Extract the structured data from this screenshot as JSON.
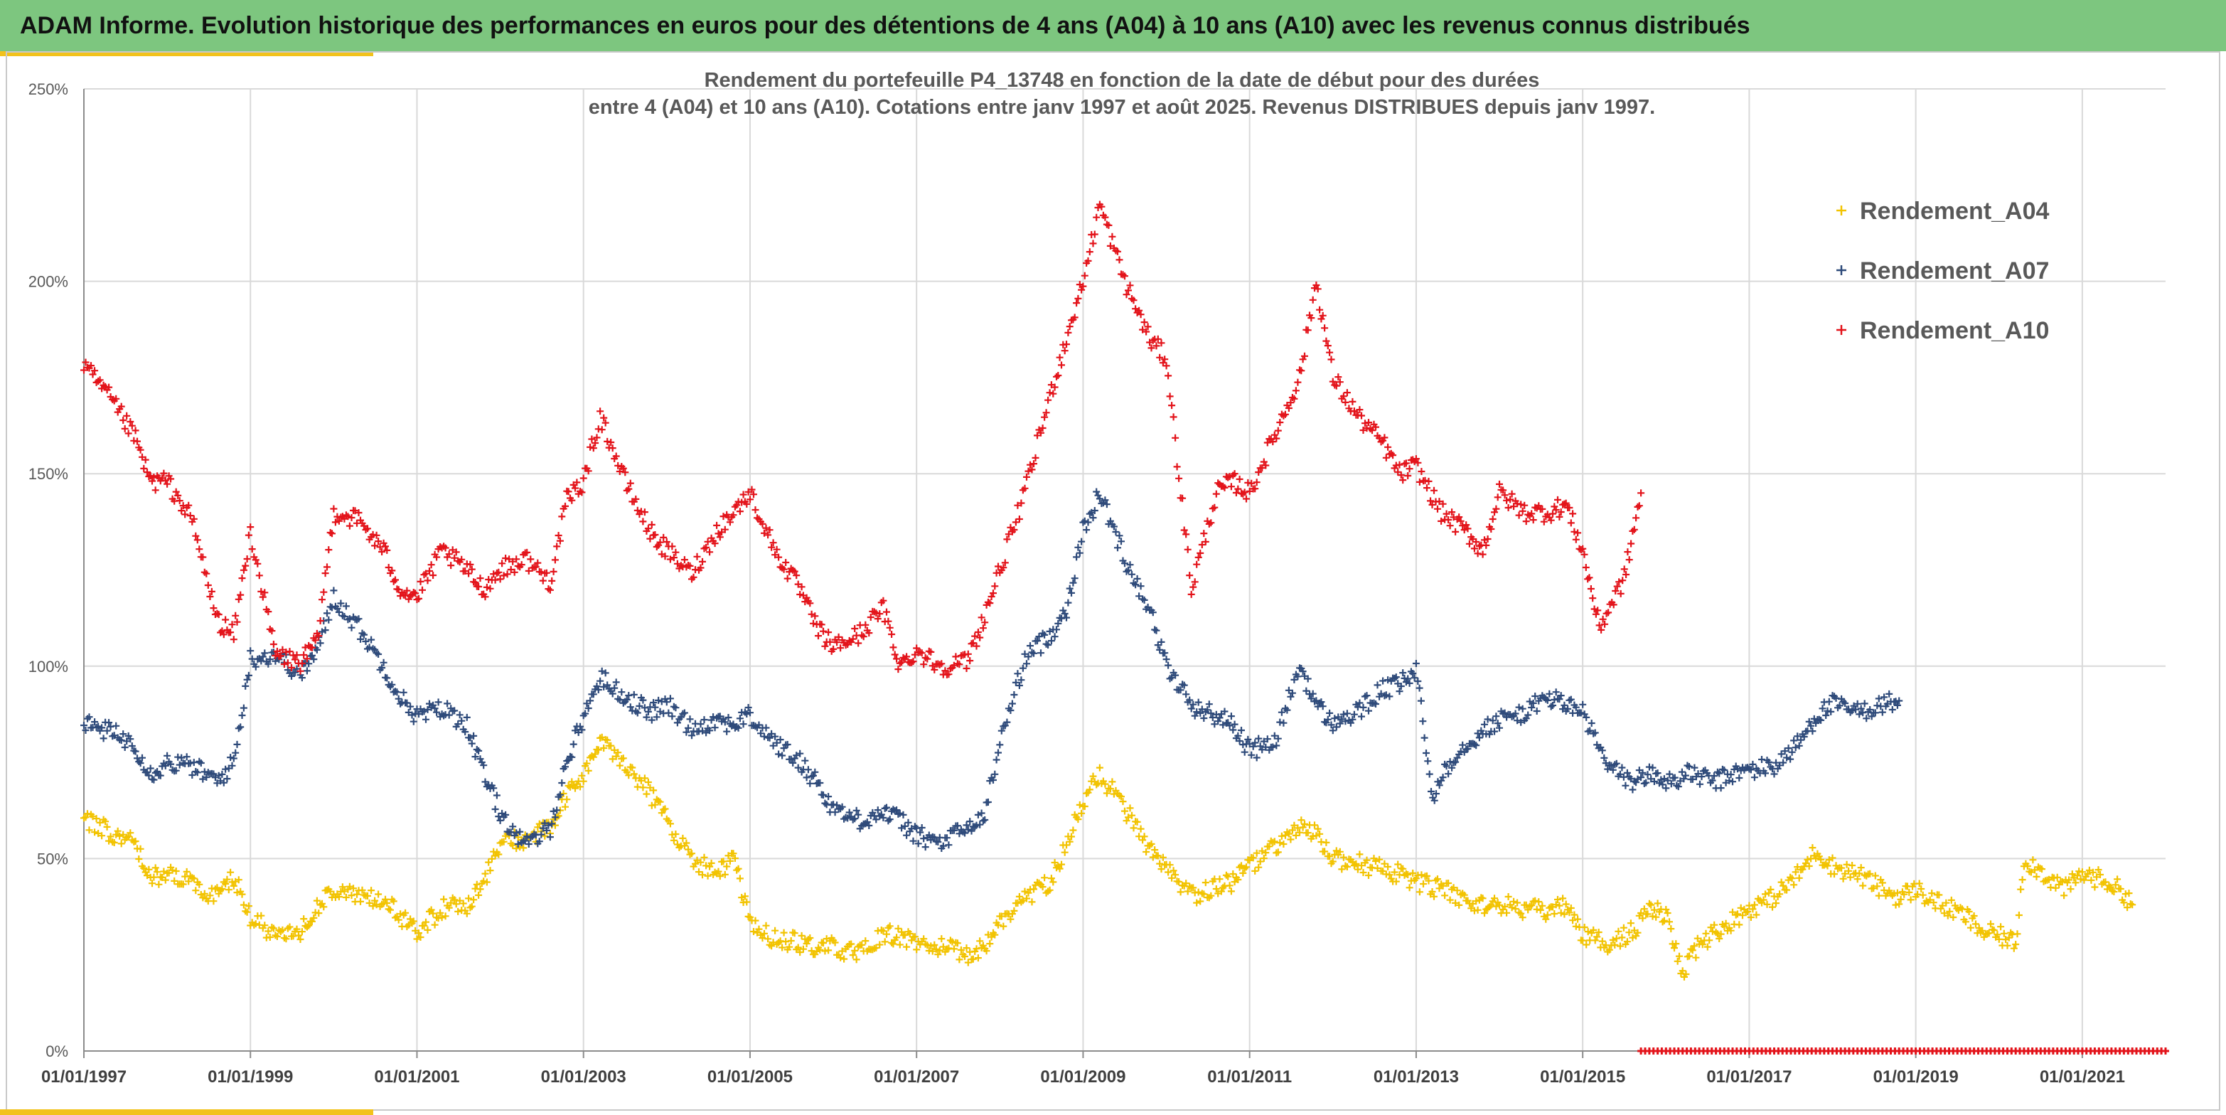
{
  "header": {
    "title": "ADAM Informe. Evolution historique des performances en euros pour des détentions de 4 ans (A04) à 10 ans (A10) avec les revenus connus distribués"
  },
  "chart_data": {
    "type": "scatter",
    "title": "Rendement du portefeuille P4_13748 en fonction de la date de début pour des durées",
    "subtitle": "entre 4 (A04) et 10 ans (A10). Cotations entre janv 1997 et août 2025. Revenus DISTRIBUES depuis janv 1997.",
    "xlabel": "",
    "ylabel": "",
    "x_range": [
      "01/01/1997",
      "01/01/2022"
    ],
    "ylim": [
      0,
      250
    ],
    "y_ticks": [
      0,
      50,
      100,
      150,
      200,
      250
    ],
    "y_tick_labels": [
      "0%",
      "50%",
      "100%",
      "150%",
      "200%",
      "250%"
    ],
    "x_tick_labels": [
      "01/01/1997",
      "01/01/1999",
      "01/01/2001",
      "01/01/2003",
      "01/01/2005",
      "01/01/2007",
      "01/01/2009",
      "01/01/2011",
      "01/01/2013",
      "01/01/2015",
      "01/01/2017",
      "01/01/2019",
      "01/01/2021"
    ],
    "grid": true,
    "marker": "+",
    "legend_position": "top-right",
    "series": [
      {
        "name": "Rendement_A04",
        "color": "#f2c300",
        "points": [
          [
            1997.0,
            60
          ],
          [
            1997.3,
            57
          ],
          [
            1997.6,
            55
          ],
          [
            1997.8,
            45
          ],
          [
            1998.0,
            46
          ],
          [
            1998.3,
            44
          ],
          [
            1998.6,
            40
          ],
          [
            1998.8,
            45
          ],
          [
            1999.0,
            35
          ],
          [
            1999.3,
            30
          ],
          [
            1999.6,
            31
          ],
          [
            1999.8,
            37
          ],
          [
            2000.0,
            42
          ],
          [
            2000.3,
            40
          ],
          [
            2000.6,
            39
          ],
          [
            2000.8,
            35
          ],
          [
            2001.0,
            31
          ],
          [
            2001.3,
            37
          ],
          [
            2001.6,
            38
          ],
          [
            2001.8,
            44
          ],
          [
            2002.0,
            54
          ],
          [
            2002.3,
            55
          ],
          [
            2002.6,
            58
          ],
          [
            2002.8,
            66
          ],
          [
            2003.0,
            72
          ],
          [
            2003.2,
            80
          ],
          [
            2003.5,
            75
          ],
          [
            2003.8,
            67
          ],
          [
            2004.0,
            60
          ],
          [
            2004.3,
            50
          ],
          [
            2004.6,
            46
          ],
          [
            2004.8,
            50
          ],
          [
            2005.0,
            33
          ],
          [
            2005.3,
            29
          ],
          [
            2005.6,
            28
          ],
          [
            2005.8,
            27
          ],
          [
            2006.0,
            27
          ],
          [
            2006.3,
            25
          ],
          [
            2006.6,
            30
          ],
          [
            2006.8,
            30
          ],
          [
            2007.0,
            28
          ],
          [
            2007.3,
            27
          ],
          [
            2007.6,
            25
          ],
          [
            2007.8,
            27
          ],
          [
            2008.0,
            33
          ],
          [
            2008.3,
            40
          ],
          [
            2008.6,
            44
          ],
          [
            2008.8,
            53
          ],
          [
            2009.0,
            65
          ],
          [
            2009.2,
            72
          ],
          [
            2009.5,
            63
          ],
          [
            2009.8,
            52
          ],
          [
            2010.0,
            47
          ],
          [
            2010.3,
            40
          ],
          [
            2010.6,
            43
          ],
          [
            2010.8,
            44
          ],
          [
            2011.0,
            48
          ],
          [
            2011.3,
            53
          ],
          [
            2011.6,
            58
          ],
          [
            2011.8,
            56
          ],
          [
            2012.0,
            50
          ],
          [
            2012.3,
            49
          ],
          [
            2012.6,
            47
          ],
          [
            2012.8,
            46
          ],
          [
            2013.0,
            44
          ],
          [
            2013.3,
            42
          ],
          [
            2013.6,
            39
          ],
          [
            2013.8,
            38
          ],
          [
            2014.0,
            38
          ],
          [
            2014.3,
            37
          ],
          [
            2014.6,
            36
          ],
          [
            2014.8,
            38
          ],
          [
            2015.0,
            30
          ],
          [
            2015.3,
            28
          ],
          [
            2015.6,
            31
          ],
          [
            2015.8,
            37
          ],
          [
            2016.0,
            35
          ],
          [
            2016.2,
            20
          ],
          [
            2016.4,
            28
          ],
          [
            2016.6,
            31
          ],
          [
            2016.8,
            34
          ],
          [
            2017.0,
            37
          ],
          [
            2017.3,
            40
          ],
          [
            2017.6,
            46
          ],
          [
            2017.8,
            52
          ],
          [
            2018.0,
            48
          ],
          [
            2018.3,
            46
          ],
          [
            2018.6,
            42
          ],
          [
            2018.8,
            40
          ],
          [
            2019.0,
            42
          ],
          [
            2019.3,
            38
          ],
          [
            2019.6,
            35
          ],
          [
            2019.8,
            31
          ],
          [
            2020.0,
            30
          ],
          [
            2020.2,
            28
          ],
          [
            2020.3,
            50
          ],
          [
            2020.6,
            45
          ],
          [
            2020.8,
            42
          ],
          [
            2021.0,
            46
          ],
          [
            2021.3,
            44
          ],
          [
            2021.5,
            41
          ],
          [
            2021.6,
            38
          ]
        ]
      },
      {
        "name": "Rendement_A07",
        "color": "#2e4a7a",
        "points": [
          [
            1997.0,
            85
          ],
          [
            1997.3,
            83
          ],
          [
            1997.6,
            80
          ],
          [
            1997.8,
            72
          ],
          [
            1998.0,
            75
          ],
          [
            1998.3,
            74
          ],
          [
            1998.6,
            70
          ],
          [
            1998.8,
            75
          ],
          [
            1999.0,
            102
          ],
          [
            1999.3,
            103
          ],
          [
            1999.6,
            98
          ],
          [
            1999.8,
            104
          ],
          [
            2000.0,
            118
          ],
          [
            2000.3,
            110
          ],
          [
            2000.6,
            100
          ],
          [
            2000.8,
            92
          ],
          [
            2001.0,
            87
          ],
          [
            2001.3,
            89
          ],
          [
            2001.6,
            85
          ],
          [
            2001.8,
            72
          ],
          [
            2002.0,
            62
          ],
          [
            2002.3,
            53
          ],
          [
            2002.6,
            58
          ],
          [
            2002.8,
            75
          ],
          [
            2003.0,
            87
          ],
          [
            2003.2,
            97
          ],
          [
            2003.5,
            92
          ],
          [
            2003.8,
            88
          ],
          [
            2004.0,
            90
          ],
          [
            2004.3,
            84
          ],
          [
            2004.6,
            86
          ],
          [
            2004.8,
            85
          ],
          [
            2005.0,
            87
          ],
          [
            2005.3,
            80
          ],
          [
            2005.6,
            75
          ],
          [
            2005.8,
            70
          ],
          [
            2006.0,
            63
          ],
          [
            2006.3,
            60
          ],
          [
            2006.6,
            62
          ],
          [
            2006.8,
            60
          ],
          [
            2007.0,
            56
          ],
          [
            2007.3,
            54
          ],
          [
            2007.6,
            58
          ],
          [
            2007.8,
            60
          ],
          [
            2008.0,
            80
          ],
          [
            2008.3,
            102
          ],
          [
            2008.6,
            108
          ],
          [
            2008.8,
            115
          ],
          [
            2009.0,
            135
          ],
          [
            2009.2,
            145
          ],
          [
            2009.5,
            128
          ],
          [
            2009.8,
            115
          ],
          [
            2010.0,
            100
          ],
          [
            2010.3,
            90
          ],
          [
            2010.6,
            87
          ],
          [
            2010.8,
            85
          ],
          [
            2011.0,
            78
          ],
          [
            2011.3,
            80
          ],
          [
            2011.6,
            100
          ],
          [
            2011.8,
            90
          ],
          [
            2012.0,
            85
          ],
          [
            2012.3,
            88
          ],
          [
            2012.6,
            94
          ],
          [
            2012.8,
            95
          ],
          [
            2013.0,
            99
          ],
          [
            2013.2,
            65
          ],
          [
            2013.3,
            72
          ],
          [
            2013.6,
            80
          ],
          [
            2013.8,
            83
          ],
          [
            2014.0,
            86
          ],
          [
            2014.3,
            88
          ],
          [
            2014.6,
            92
          ],
          [
            2014.8,
            90
          ],
          [
            2015.0,
            88
          ],
          [
            2015.3,
            74
          ],
          [
            2015.6,
            70
          ],
          [
            2015.8,
            72
          ],
          [
            2016.0,
            70
          ],
          [
            2016.3,
            72
          ],
          [
            2016.6,
            70
          ],
          [
            2016.8,
            72
          ],
          [
            2017.0,
            73
          ],
          [
            2017.3,
            74
          ],
          [
            2017.6,
            80
          ],
          [
            2017.8,
            87
          ],
          [
            2018.0,
            90
          ],
          [
            2018.3,
            88
          ],
          [
            2018.6,
            90
          ],
          [
            2018.8,
            91
          ]
        ]
      },
      {
        "name": "Rendement_A10",
        "color": "#e3131a",
        "points": [
          [
            1997.0,
            178
          ],
          [
            1997.3,
            170
          ],
          [
            1997.6,
            160
          ],
          [
            1997.8,
            148
          ],
          [
            1998.0,
            148
          ],
          [
            1998.3,
            138
          ],
          [
            1998.6,
            112
          ],
          [
            1998.8,
            108
          ],
          [
            1999.0,
            135
          ],
          [
            1999.3,
            103
          ],
          [
            1999.6,
            101
          ],
          [
            1999.8,
            106
          ],
          [
            2000.0,
            140
          ],
          [
            2000.3,
            138
          ],
          [
            2000.6,
            130
          ],
          [
            2000.8,
            120
          ],
          [
            2001.0,
            118
          ],
          [
            2001.3,
            130
          ],
          [
            2001.6,
            125
          ],
          [
            2001.8,
            120
          ],
          [
            2002.0,
            125
          ],
          [
            2002.3,
            128
          ],
          [
            2002.6,
            122
          ],
          [
            2002.8,
            143
          ],
          [
            2003.0,
            148
          ],
          [
            2003.2,
            165
          ],
          [
            2003.5,
            148
          ],
          [
            2003.8,
            135
          ],
          [
            2004.0,
            130
          ],
          [
            2004.3,
            124
          ],
          [
            2004.6,
            135
          ],
          [
            2004.8,
            140
          ],
          [
            2005.0,
            145
          ],
          [
            2005.3,
            130
          ],
          [
            2005.6,
            120
          ],
          [
            2005.8,
            110
          ],
          [
            2006.0,
            105
          ],
          [
            2006.3,
            108
          ],
          [
            2006.6,
            115
          ],
          [
            2006.8,
            100
          ],
          [
            2007.0,
            104
          ],
          [
            2007.3,
            100
          ],
          [
            2007.6,
            101
          ],
          [
            2007.8,
            112
          ],
          [
            2008.0,
            125
          ],
          [
            2008.3,
            145
          ],
          [
            2008.6,
            170
          ],
          [
            2008.8,
            185
          ],
          [
            2009.0,
            200
          ],
          [
            2009.2,
            220
          ],
          [
            2009.5,
            200
          ],
          [
            2009.8,
            185
          ],
          [
            2010.0,
            180
          ],
          [
            2010.3,
            120
          ],
          [
            2010.6,
            145
          ],
          [
            2010.8,
            148
          ],
          [
            2011.0,
            145
          ],
          [
            2011.3,
            160
          ],
          [
            2011.6,
            175
          ],
          [
            2011.8,
            200
          ],
          [
            2012.0,
            175
          ],
          [
            2012.3,
            165
          ],
          [
            2012.6,
            158
          ],
          [
            2012.8,
            150
          ],
          [
            2013.0,
            152
          ],
          [
            2013.3,
            140
          ],
          [
            2013.6,
            135
          ],
          [
            2013.8,
            130
          ],
          [
            2014.0,
            145
          ],
          [
            2014.3,
            140
          ],
          [
            2014.6,
            140
          ],
          [
            2014.8,
            142
          ],
          [
            2015.0,
            130
          ],
          [
            2015.2,
            110
          ],
          [
            2015.5,
            123
          ],
          [
            2015.7,
            145
          ]
        ]
      }
    ]
  }
}
